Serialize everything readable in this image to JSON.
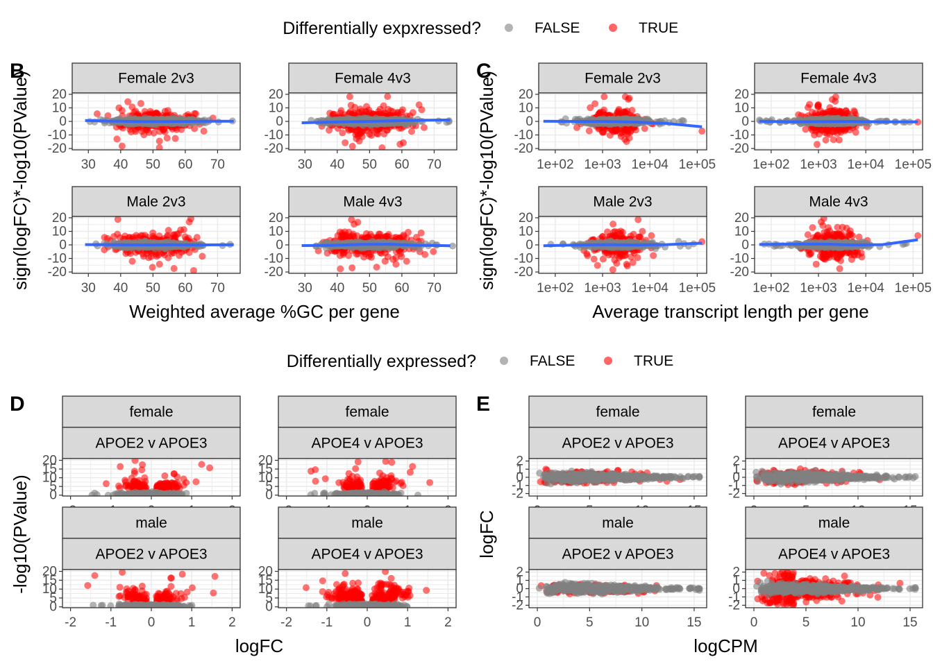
{
  "legends": [
    {
      "title": "Differentially expxressed?",
      "entries": [
        {
          "label": "FALSE",
          "color": "#808080"
        },
        {
          "label": "TRUE",
          "color": "#ff0000"
        }
      ]
    },
    {
      "title": "Differentially expressed?",
      "entries": [
        {
          "label": "FALSE",
          "color": "#808080"
        },
        {
          "label": "TRUE",
          "color": "#ff0000"
        }
      ]
    }
  ],
  "colors": {
    "false_points": "#808080",
    "true_points": "#ff0000",
    "smooth_line": "#3366ff",
    "strip_fill": "#d9d9d9",
    "strip_border": "#333333",
    "grid": "#ebebeb"
  },
  "chart_data": [
    {
      "letter": "B",
      "type": "scatter",
      "xlabel": "Weighted average %GC per gene",
      "ylabel": "sign(logFC)*-log10(PValue)",
      "xlim": [
        25,
        77
      ],
      "ylim": [
        -21,
        21
      ],
      "x_ticks": [
        "30",
        "40",
        "50",
        "60",
        "70"
      ],
      "y_ticks": [
        "20",
        "10",
        "0",
        "-10",
        "-20"
      ],
      "smooth": true,
      "facets": [
        {
          "strip": [
            "Female 2v3"
          ],
          "true_spread": 0.5,
          "smooth_y": [
            0.6,
            0.2,
            -0.1,
            -0.1,
            0.1,
            0.1
          ]
        },
        {
          "strip": [
            "Female 4v3"
          ],
          "true_spread": 0.6,
          "smooth_y": [
            -1.0,
            -0.5,
            -0.1,
            0.3,
            0.8,
            1.1
          ]
        },
        {
          "strip": [
            "Male 2v3"
          ],
          "true_spread": 0.5,
          "smooth_y": [
            0.2,
            0.1,
            0.0,
            0.1,
            0.0,
            0.1
          ]
        },
        {
          "strip": [
            "Male 4v3"
          ],
          "true_spread": 0.6,
          "smooth_y": [
            -0.5,
            -0.3,
            0.3,
            0.5,
            -0.3,
            -0.6
          ]
        }
      ]
    },
    {
      "letter": "C",
      "type": "scatter",
      "xlabel": "Average transcript length per gene",
      "ylabel": "sign(logFC)*-log10(PValue)",
      "xlim": [
        1.65,
        5.2
      ],
      "ylim": [
        -21,
        21
      ],
      "x_ticks": [
        "1e+02",
        "1e+03",
        "1e+04",
        "1e+05"
      ],
      "y_ticks": [
        "20",
        "10",
        "0",
        "-10",
        "-20"
      ],
      "smooth": true,
      "facets": [
        {
          "strip": [
            "Female 2v3"
          ],
          "true_spread": 0.5,
          "smooth_y": [
            0.1,
            0.0,
            0.0,
            -0.5,
            -1.5,
            -4.0
          ]
        },
        {
          "strip": [
            "Female 4v3"
          ],
          "true_spread": 0.6,
          "smooth_y": [
            0.1,
            -0.3,
            -0.1,
            0.0,
            -0.3,
            -0.3
          ]
        },
        {
          "strip": [
            "Male 2v3"
          ],
          "true_spread": 0.5,
          "smooth_y": [
            -0.6,
            -0.1,
            0.2,
            0.0,
            0.2,
            1.3
          ]
        },
        {
          "strip": [
            "Male 4v3"
          ],
          "true_spread": 0.6,
          "smooth_y": [
            0.3,
            0.5,
            0.6,
            0.0,
            0.2,
            3.8
          ]
        }
      ]
    },
    {
      "letter": "D",
      "type": "scatter",
      "xlabel": "logFC",
      "ylabel": "-log10(PValue)",
      "xlim": [
        -2.2,
        2.2
      ],
      "ylim": [
        -0.5,
        21
      ],
      "x_ticks": [
        "-2",
        "-1",
        "0",
        "1",
        "2"
      ],
      "y_ticks": [
        "20",
        "15",
        "10",
        "5",
        "0"
      ],
      "smooth": false,
      "facets": [
        {
          "strip": [
            "female",
            "APOE2 v APOE3"
          ],
          "true_spread": 0.5
        },
        {
          "strip": [
            "female",
            "APOE4 v APOE3"
          ],
          "true_spread": 0.55
        },
        {
          "strip": [
            "male",
            "APOE2 v APOE3"
          ],
          "true_spread": 0.5
        },
        {
          "strip": [
            "male",
            "APOE4 v APOE3"
          ],
          "true_spread": 0.9
        }
      ]
    },
    {
      "letter": "E",
      "type": "scatter",
      "xlabel": "logCPM",
      "ylabel": "logFC",
      "xlim": [
        -0.8,
        16.2
      ],
      "ylim": [
        -2.3,
        2.3
      ],
      "x_ticks": [
        "0",
        "5",
        "10",
        "15"
      ],
      "y_ticks": [
        "2",
        "1",
        "0",
        "-1",
        "-2"
      ],
      "smooth": false,
      "facets": [
        {
          "strip": [
            "female",
            "APOE2 v APOE3"
          ],
          "true_spread": 0.5
        },
        {
          "strip": [
            "female",
            "APOE4 v APOE3"
          ],
          "true_spread": 0.5
        },
        {
          "strip": [
            "male",
            "APOE2 v APOE3"
          ],
          "true_spread": 0.3
        },
        {
          "strip": [
            "male",
            "APOE4 v APOE3"
          ],
          "true_spread": 0.9
        }
      ]
    }
  ]
}
